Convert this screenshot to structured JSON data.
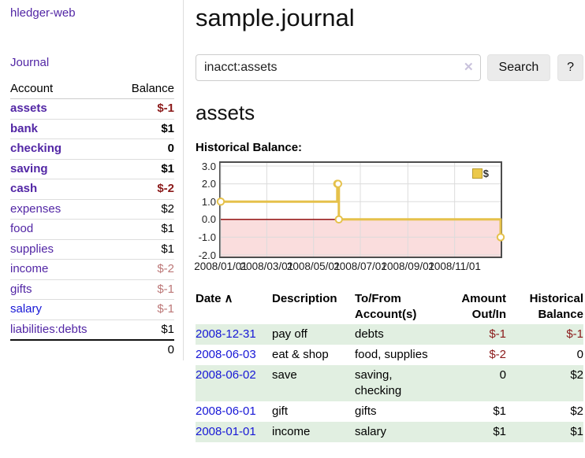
{
  "app": {
    "brand": "hledger-web",
    "nav_journal": "Journal"
  },
  "sidebar": {
    "header": {
      "account": "Account",
      "balance": "Balance"
    },
    "accounts": [
      {
        "name": "assets",
        "balance": "$-1",
        "indent": 1,
        "bold": true,
        "balance_class": "neg-strong"
      },
      {
        "name": "bank",
        "balance": "$1",
        "indent": 2,
        "bold": true,
        "balance_class": "strong"
      },
      {
        "name": "checking",
        "balance": "0",
        "indent": 3,
        "bold": true,
        "balance_class": "strong"
      },
      {
        "name": "saving",
        "balance": "$1",
        "indent": 3,
        "bold": true,
        "balance_class": "strong"
      },
      {
        "name": "cash",
        "balance": "$-2",
        "indent": 2,
        "bold": true,
        "balance_class": "neg-strong"
      },
      {
        "name": "expenses",
        "balance": "$2",
        "indent": 1,
        "bold": false,
        "balance_class": ""
      },
      {
        "name": "food",
        "balance": "$1",
        "indent": 2,
        "bold": false,
        "balance_class": ""
      },
      {
        "name": "supplies",
        "balance": "$1",
        "indent": 2,
        "bold": false,
        "balance_class": ""
      },
      {
        "name": "income",
        "balance": "$-2",
        "indent": 1,
        "bold": false,
        "balance_class": "neg-soft"
      },
      {
        "name": "gifts",
        "balance": "$-1",
        "indent": 2,
        "bold": false,
        "balance_class": "neg-soft"
      },
      {
        "name": "salary",
        "balance": "$-1",
        "indent": 2,
        "bold": false,
        "balance_class": "neg-soft",
        "unvisited": true
      },
      {
        "name": "liabilities:debts",
        "balance": "$1",
        "indent": 1,
        "bold": false,
        "balance_class": ""
      }
    ],
    "total": "0"
  },
  "header": {
    "title": "sample.journal"
  },
  "search": {
    "value": "inacct:assets",
    "clear_icon": "✕",
    "button_label": "Search",
    "help_label": "?"
  },
  "account_page": {
    "title": "assets",
    "chart_label": "Historical Balance:"
  },
  "chart_data": {
    "type": "line",
    "step": true,
    "title": "Historical Balance:",
    "legend": "$",
    "series": [
      {
        "name": "$",
        "points": [
          {
            "date": "2008-01-01",
            "value": 1
          },
          {
            "date": "2008-06-01",
            "value": 2
          },
          {
            "date": "2008-06-02",
            "value": 2
          },
          {
            "date": "2008-06-03",
            "value": 0
          },
          {
            "date": "2008-12-31",
            "value": -1
          }
        ]
      }
    ],
    "x_ticks": [
      "2008/01/01",
      "2008/03/01",
      "2008/05/01",
      "2008/07/01",
      "2008/09/01",
      "2008/11/01"
    ],
    "y_ticks": [
      "3.0",
      "2.0",
      "1.0",
      "0.0",
      "-1.0",
      "-2.0"
    ],
    "ylim": [
      -2,
      3
    ],
    "xrange": [
      "2008-01-01",
      "2008-12-31"
    ],
    "grid": true,
    "legend_position": "top-right",
    "line_color": "#e5c14b",
    "negative_fill": "#fadddd",
    "zero_line_color": "#8b0000"
  },
  "register_table": {
    "sort_caret": "∧",
    "columns": [
      {
        "label": "Date",
        "align": "left",
        "sortable": true
      },
      {
        "label": "Description",
        "align": "left"
      },
      {
        "label": "To/From Account(s)",
        "align": "left"
      },
      {
        "label": "Amount Out/In",
        "align": "right"
      },
      {
        "label": "Historical Balance",
        "align": "right"
      }
    ],
    "rows": [
      {
        "date": "2008-12-31",
        "description": "pay off",
        "accounts": "debts",
        "amount": "$-1",
        "amount_neg": true,
        "balance": "$-1",
        "balance_neg": true
      },
      {
        "date": "2008-06-03",
        "description": "eat & shop",
        "accounts": "food, supplies",
        "amount": "$-2",
        "amount_neg": true,
        "balance": "0",
        "balance_neg": false
      },
      {
        "date": "2008-06-02",
        "description": "save",
        "accounts": "saving, checking",
        "amount": "0",
        "amount_neg": false,
        "balance": "$2",
        "balance_neg": false
      },
      {
        "date": "2008-06-01",
        "description": "gift",
        "accounts": "gifts",
        "amount": "$1",
        "amount_neg": false,
        "balance": "$2",
        "balance_neg": false
      },
      {
        "date": "2008-01-01",
        "description": "income",
        "accounts": "salary",
        "amount": "$1",
        "amount_neg": false,
        "balance": "$1",
        "balance_neg": false
      }
    ]
  }
}
